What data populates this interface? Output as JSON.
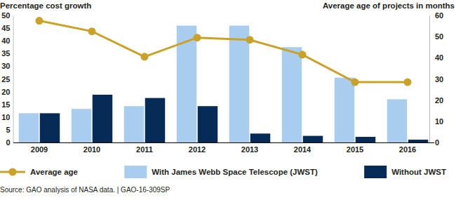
{
  "chart_data": {
    "type": "bar",
    "ylabel": "Percentage cost growth",
    "y2label": "Average age of projects in months",
    "source": "Source: GAO analysis of NASA data. | GAO-16-309SP",
    "categories": [
      "2009",
      "2010",
      "2011",
      "2012",
      "2013",
      "2014",
      "2015",
      "2016"
    ],
    "series": [
      {
        "name": "Average age",
        "type": "line",
        "axis": "y2",
        "marker": "circle",
        "color": "#c9a227",
        "values": [
          57.5,
          52.5,
          40.5,
          49.5,
          48.5,
          41.5,
          28.5,
          28.5
        ]
      },
      {
        "name": "With James Webb Space Telescope (JWST)",
        "type": "bar",
        "color": "#a8cdee",
        "values": [
          11.5,
          13.2,
          14.3,
          46,
          46,
          37.5,
          25.5,
          17
        ]
      },
      {
        "name": "Without JWST",
        "type": "bar",
        "color": "#072b57",
        "values": [
          11.5,
          18.8,
          17.5,
          14.3,
          3.5,
          2.6,
          2.2,
          1.1
        ]
      }
    ],
    "ylim": [
      0,
      50
    ],
    "yticks": [
      0,
      5,
      10,
      15,
      20,
      25,
      30,
      35,
      40,
      45,
      50
    ],
    "y2lim": [
      0,
      60
    ],
    "y2ticks": [
      0,
      10,
      20,
      30,
      40,
      50,
      60
    ],
    "legend": "bottom",
    "grid": false
  }
}
